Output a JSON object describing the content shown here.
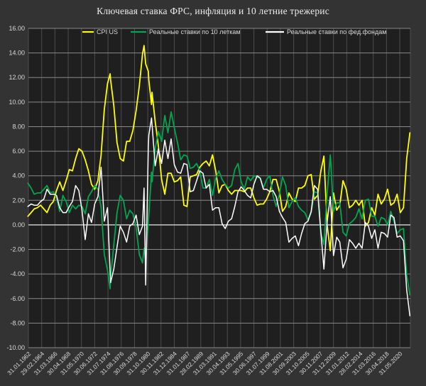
{
  "window": {
    "background": "#333333",
    "plot_background": "#1f1f1f"
  },
  "colors": {
    "accent_yellow": "#ffff00",
    "accent_green": "#00a550",
    "accent_white": "#ffffff",
    "h_gridline": "#8a8a8a",
    "v_gridline": "#4d4d4d",
    "zero_line": "#d8d8d8",
    "axis_text": "#d9d9d9",
    "title_text": "#ececec"
  },
  "chart_data": {
    "type": "line",
    "title": "Ключевая ставка ФРС, инфляция и 10 летние трежерис",
    "legend_position": "top",
    "grid": true,
    "ylim": [
      -10,
      16
    ],
    "y_tick_step": 2,
    "y_tick_labels": [
      "16.00",
      "14.00",
      "12.00",
      "10.00",
      "8.00",
      "6.00",
      "4.00",
      "2.00",
      "0.00",
      "-2.00",
      "-4.00",
      "-6.00",
      "-8.00",
      "-10.00"
    ],
    "xlim": [
      1962.08,
      2022.08
    ],
    "x_tick_interval_months": 25,
    "x_tick_labels": [
      "31.01.1962",
      "29.02.1964",
      "31.03.1966",
      "30.04.1968",
      "31.05.1970",
      "30.06.1972",
      "31.07.1974",
      "31.08.1976",
      "30.09.1978",
      "31.10.1980",
      "30.11.1982",
      "31.12.1984",
      "31.01.1987",
      "28.02.1989",
      "31.03.1991",
      "30.04.1993",
      "31.05.1995",
      "30.06.1997",
      "31.07.1999",
      "31.08.2001",
      "30.09.2003",
      "31.10.2005",
      "30.11.2007",
      "31.12.2009",
      "31.01.2012",
      "28.02.2014",
      "31.03.2016",
      "30.04.2018",
      "31.05.2020"
    ],
    "x": [
      1962.0,
      1962.5,
      1963.0,
      1963.5,
      1964.0,
      1964.5,
      1965.0,
      1965.5,
      1966.0,
      1966.5,
      1967.0,
      1967.5,
      1968.0,
      1968.5,
      1969.0,
      1969.5,
      1970.0,
      1970.5,
      1971.0,
      1971.5,
      1972.0,
      1972.5,
      1973.0,
      1973.5,
      1974.0,
      1974.5,
      1974.92,
      1975.0,
      1975.5,
      1976.0,
      1976.5,
      1977.0,
      1977.5,
      1978.0,
      1978.5,
      1979.0,
      1979.5,
      1980.0,
      1980.25,
      1980.5,
      1980.92,
      1981.0,
      1981.42,
      1981.5,
      1982.0,
      1982.5,
      1983.0,
      1983.5,
      1984.0,
      1984.5,
      1985.0,
      1985.5,
      1986.0,
      1986.5,
      1987.0,
      1987.5,
      1988.0,
      1988.5,
      1989.0,
      1989.5,
      1990.0,
      1990.5,
      1991.0,
      1991.5,
      1992.0,
      1992.5,
      1993.0,
      1993.5,
      1994.0,
      1994.5,
      1995.0,
      1995.5,
      1996.0,
      1996.5,
      1997.0,
      1997.5,
      1998.0,
      1998.5,
      1999.0,
      1999.5,
      2000.0,
      2000.5,
      2001.0,
      2001.5,
      2002.0,
      2002.5,
      2003.0,
      2003.5,
      2004.0,
      2004.5,
      2005.0,
      2005.5,
      2006.0,
      2006.5,
      2007.0,
      2007.5,
      2008.0,
      2008.5,
      2009.0,
      2009.5,
      2010.0,
      2010.5,
      2011.0,
      2011.5,
      2012.0,
      2012.5,
      2013.0,
      2013.5,
      2014.0,
      2014.5,
      2015.0,
      2015.5,
      2016.0,
      2016.5,
      2017.0,
      2017.5,
      2018.0,
      2018.5,
      2019.0,
      2019.5,
      2020.0,
      2020.5,
      2021.0,
      2021.5,
      2022.0
    ],
    "series": [
      {
        "name": "CPI US",
        "color": "#ffff00",
        "width": 1.8,
        "values": [
          0.7,
          1.0,
          1.3,
          1.4,
          1.6,
          1.3,
          1.0,
          1.6,
          1.9,
          2.8,
          3.5,
          2.8,
          3.6,
          4.5,
          4.4,
          5.4,
          6.2,
          6.0,
          5.3,
          4.4,
          3.3,
          2.9,
          3.6,
          5.7,
          9.4,
          11.5,
          12.3,
          11.8,
          9.7,
          6.7,
          5.4,
          5.2,
          6.8,
          6.8,
          7.7,
          9.3,
          11.3,
          13.9,
          14.6,
          13.1,
          12.5,
          11.8,
          9.8,
          10.8,
          8.4,
          6.4,
          3.7,
          2.5,
          4.2,
          4.2,
          3.5,
          3.6,
          3.9,
          1.6,
          1.5,
          3.9,
          4.0,
          4.1,
          4.7,
          5.0,
          5.2,
          4.8,
          5.7,
          4.4,
          2.6,
          3.2,
          3.3,
          2.8,
          2.5,
          2.8,
          2.8,
          2.8,
          2.7,
          3.0,
          3.0,
          2.2,
          1.6,
          1.7,
          1.7,
          2.1,
          2.7,
          3.7,
          3.7,
          2.7,
          1.1,
          1.5,
          2.6,
          2.1,
          1.9,
          3.0,
          3.0,
          3.2,
          4.0,
          4.1,
          2.1,
          2.4,
          4.3,
          5.6,
          0.0,
          -2.1,
          2.6,
          1.2,
          1.6,
          3.6,
          2.9,
          1.4,
          1.6,
          2.0,
          1.6,
          2.0,
          -0.1,
          0.2,
          1.4,
          0.8,
          2.5,
          1.7,
          2.1,
          2.9,
          1.6,
          1.8,
          2.5,
          1.0,
          1.4,
          5.4,
          7.5
        ]
      },
      {
        "name": "Реальные ставки по 10 леткам",
        "color": "#00a550",
        "width": 1.8,
        "values": [
          3.4,
          3.0,
          2.5,
          2.6,
          2.6,
          2.9,
          3.2,
          2.6,
          2.7,
          2.2,
          1.1,
          2.4,
          1.9,
          1.0,
          1.6,
          1.3,
          1.6,
          1.5,
          0.9,
          2.3,
          2.7,
          3.2,
          2.9,
          1.4,
          -2.4,
          -3.7,
          -5.2,
          -4.3,
          -1.6,
          1.0,
          2.4,
          2.0,
          0.5,
          1.2,
          0.9,
          -0.2,
          -2.4,
          -3.1,
          -1.9,
          -2.9,
          0.3,
          0.8,
          4.3,
          3.5,
          6.2,
          7.6,
          6.8,
          8.9,
          7.5,
          9.2,
          7.9,
          6.7,
          5.3,
          5.7,
          5.6,
          4.6,
          4.7,
          5.0,
          4.4,
          3.0,
          3.0,
          3.7,
          2.4,
          3.8,
          4.4,
          3.7,
          3.3,
          3.0,
          3.2,
          4.5,
          5.0,
          3.5,
          2.9,
          3.9,
          3.6,
          4.0,
          3.9,
          3.8,
          3.0,
          3.7,
          4.0,
          2.4,
          1.5,
          2.5,
          3.9,
          3.2,
          1.4,
          1.9,
          2.2,
          1.5,
          1.2,
          1.0,
          0.4,
          1.0,
          2.7,
          2.6,
          -0.6,
          -1.6,
          2.5,
          5.7,
          1.1,
          1.8,
          1.8,
          -0.6,
          -0.9,
          0.1,
          0.3,
          0.6,
          1.3,
          0.5,
          2.0,
          2.1,
          0.7,
          0.7,
          -0.1,
          0.6,
          0.5,
          0.0,
          1.1,
          0.3,
          -0.7,
          -0.4,
          -0.3,
          -4.1,
          -5.7
        ]
      },
      {
        "name": "Реальные ставки по фед.фондам",
        "color": "#ffffff",
        "width": 1.5,
        "values": [
          1.5,
          1.7,
          1.6,
          1.6,
          1.9,
          2.1,
          2.9,
          2.5,
          2.5,
          2.4,
          1.4,
          1.0,
          1.0,
          1.5,
          1.9,
          3.2,
          2.8,
          1.2,
          -1.2,
          0.9,
          0.2,
          1.7,
          2.3,
          4.7,
          0.3,
          1.4,
          -3.8,
          -4.7,
          -3.6,
          -1.8,
          -0.1,
          -0.6,
          -1.4,
          -0.1,
          0.1,
          0.8,
          -0.8,
          -0.1,
          3.0,
          -4.9,
          6.4,
          7.3,
          8.7,
          8.2,
          4.8,
          6.2,
          5.0,
          6.9,
          5.4,
          7.0,
          4.9,
          4.3,
          4.2,
          5.0,
          4.9,
          2.7,
          2.8,
          3.6,
          4.4,
          4.2,
          3.0,
          3.3,
          1.2,
          1.4,
          1.4,
          0.1,
          -0.3,
          0.3,
          0.5,
          1.5,
          2.7,
          3.1,
          2.8,
          2.4,
          2.2,
          3.3,
          4.0,
          3.8,
          2.9,
          2.9,
          2.7,
          2.8,
          2.3,
          1.1,
          0.6,
          0.2,
          -1.4,
          -1.1,
          -0.9,
          -1.7,
          -0.7,
          0.1,
          0.3,
          1.1,
          3.2,
          2.9,
          -0.4,
          -3.6,
          0.2,
          2.3,
          -2.5,
          -1.0,
          -1.4,
          -3.5,
          -2.8,
          -1.2,
          -1.5,
          -1.9,
          -1.5,
          -1.9,
          0.2,
          -0.1,
          -1.1,
          -0.4,
          -1.9,
          -0.6,
          -0.7,
          -1.0,
          0.8,
          0.6,
          -1.0,
          -0.9,
          -1.3,
          -5.3,
          -7.4
        ]
      }
    ]
  }
}
